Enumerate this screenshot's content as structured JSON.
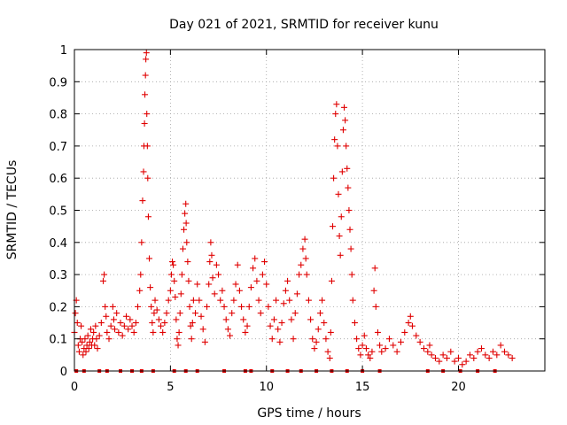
{
  "chart_data": {
    "type": "scatter",
    "title": "Day 021 of 2021, SRMTID for receiver kunu",
    "xlabel": "GPS time / hours",
    "ylabel": "SRMTID / TECUs",
    "xlim": [
      0,
      24.5
    ],
    "ylim": [
      0,
      1
    ],
    "x_ticks": [
      0,
      5,
      10,
      15,
      20
    ],
    "x_tick_labels": [
      "0",
      "5",
      "10",
      "15",
      "20"
    ],
    "y_ticks": [
      0,
      0.1,
      0.2,
      0.3,
      0.4,
      0.5,
      0.6,
      0.7,
      0.8,
      0.9,
      1
    ],
    "y_tick_labels": [
      "0",
      "0.1",
      "0.2",
      "0.3",
      "0.4",
      "0.5",
      "0.6",
      "0.7",
      "0.8",
      "0.9",
      "1"
    ],
    "grid": true,
    "marker": "+",
    "color": "#e00000",
    "series": [
      {
        "name": "SRMTID",
        "points": [
          [
            0.0,
            0.12
          ],
          [
            0.05,
            0.18
          ],
          [
            0.1,
            0.22
          ],
          [
            0.15,
            0.15
          ],
          [
            0.2,
            0.08
          ],
          [
            0.25,
            0.06
          ],
          [
            0.3,
            0.1
          ],
          [
            0.35,
            0.14
          ],
          [
            0.4,
            0.09
          ],
          [
            0.45,
            0.05
          ],
          [
            0.5,
            0.07
          ],
          [
            0.55,
            0.1
          ],
          [
            0.6,
            0.06
          ],
          [
            0.65,
            0.08
          ],
          [
            0.7,
            0.11
          ],
          [
            0.75,
            0.07
          ],
          [
            0.8,
            0.09
          ],
          [
            0.85,
            0.13
          ],
          [
            0.9,
            0.08
          ],
          [
            0.95,
            0.1
          ],
          [
            1.0,
            0.12
          ],
          [
            1.05,
            0.08
          ],
          [
            1.1,
            0.14
          ],
          [
            1.15,
            0.1
          ],
          [
            1.2,
            0.07
          ],
          [
            1.3,
            0.11
          ],
          [
            1.4,
            0.15
          ],
          [
            1.5,
            0.28
          ],
          [
            1.55,
            0.3
          ],
          [
            1.6,
            0.2
          ],
          [
            1.65,
            0.17
          ],
          [
            1.7,
            0.12
          ],
          [
            1.8,
            0.1
          ],
          [
            1.9,
            0.14
          ],
          [
            2.0,
            0.2
          ],
          [
            2.05,
            0.16
          ],
          [
            2.1,
            0.13
          ],
          [
            2.2,
            0.18
          ],
          [
            2.3,
            0.12
          ],
          [
            2.4,
            0.15
          ],
          [
            2.5,
            0.11
          ],
          [
            2.6,
            0.14
          ],
          [
            2.7,
            0.17
          ],
          [
            2.8,
            0.13
          ],
          [
            2.9,
            0.16
          ],
          [
            3.0,
            0.14
          ],
          [
            3.1,
            0.12
          ],
          [
            3.2,
            0.15
          ],
          [
            3.3,
            0.2
          ],
          [
            3.4,
            0.25
          ],
          [
            3.45,
            0.3
          ],
          [
            3.5,
            0.4
          ],
          [
            3.55,
            0.53
          ],
          [
            3.6,
            0.62
          ],
          [
            3.62,
            0.7
          ],
          [
            3.65,
            0.77
          ],
          [
            3.67,
            0.86
          ],
          [
            3.7,
            0.92
          ],
          [
            3.72,
            0.97
          ],
          [
            3.75,
            0.99
          ],
          [
            3.77,
            0.8
          ],
          [
            3.8,
            0.7
          ],
          [
            3.82,
            0.6
          ],
          [
            3.85,
            0.48
          ],
          [
            3.9,
            0.35
          ],
          [
            3.95,
            0.26
          ],
          [
            4.0,
            0.2
          ],
          [
            4.05,
            0.15
          ],
          [
            4.1,
            0.12
          ],
          [
            4.15,
            0.18
          ],
          [
            4.2,
            0.22
          ],
          [
            4.3,
            0.19
          ],
          [
            4.4,
            0.16
          ],
          [
            4.5,
            0.14
          ],
          [
            4.6,
            0.12
          ],
          [
            4.7,
            0.15
          ],
          [
            4.8,
            0.18
          ],
          [
            4.9,
            0.22
          ],
          [
            5.0,
            0.25
          ],
          [
            5.05,
            0.3
          ],
          [
            5.1,
            0.34
          ],
          [
            5.15,
            0.33
          ],
          [
            5.2,
            0.28
          ],
          [
            5.25,
            0.23
          ],
          [
            5.3,
            0.16
          ],
          [
            5.35,
            0.1
          ],
          [
            5.4,
            0.08
          ],
          [
            5.45,
            0.12
          ],
          [
            5.5,
            0.18
          ],
          [
            5.55,
            0.24
          ],
          [
            5.6,
            0.3
          ],
          [
            5.65,
            0.38
          ],
          [
            5.7,
            0.44
          ],
          [
            5.75,
            0.49
          ],
          [
            5.8,
            0.52
          ],
          [
            5.82,
            0.46
          ],
          [
            5.85,
            0.4
          ],
          [
            5.9,
            0.34
          ],
          [
            5.95,
            0.28
          ],
          [
            6.0,
            0.2
          ],
          [
            6.05,
            0.14
          ],
          [
            6.1,
            0.1
          ],
          [
            6.15,
            0.15
          ],
          [
            6.2,
            0.22
          ],
          [
            6.3,
            0.18
          ],
          [
            6.4,
            0.27
          ],
          [
            6.5,
            0.22
          ],
          [
            6.6,
            0.17
          ],
          [
            6.7,
            0.13
          ],
          [
            6.8,
            0.09
          ],
          [
            6.9,
            0.2
          ],
          [
            7.0,
            0.27
          ],
          [
            7.05,
            0.34
          ],
          [
            7.1,
            0.4
          ],
          [
            7.15,
            0.36
          ],
          [
            7.2,
            0.29
          ],
          [
            7.3,
            0.24
          ],
          [
            7.4,
            0.33
          ],
          [
            7.5,
            0.3
          ],
          [
            7.6,
            0.22
          ],
          [
            7.7,
            0.25
          ],
          [
            7.8,
            0.2
          ],
          [
            7.9,
            0.16
          ],
          [
            8.0,
            0.13
          ],
          [
            8.1,
            0.11
          ],
          [
            8.2,
            0.18
          ],
          [
            8.3,
            0.22
          ],
          [
            8.4,
            0.27
          ],
          [
            8.5,
            0.33
          ],
          [
            8.6,
            0.25
          ],
          [
            8.7,
            0.2
          ],
          [
            8.8,
            0.16
          ],
          [
            8.9,
            0.12
          ],
          [
            9.0,
            0.14
          ],
          [
            9.1,
            0.2
          ],
          [
            9.2,
            0.26
          ],
          [
            9.3,
            0.32
          ],
          [
            9.4,
            0.35
          ],
          [
            9.5,
            0.28
          ],
          [
            9.6,
            0.22
          ],
          [
            9.7,
            0.18
          ],
          [
            9.8,
            0.3
          ],
          [
            9.9,
            0.34
          ],
          [
            10.0,
            0.27
          ],
          [
            10.1,
            0.2
          ],
          [
            10.2,
            0.14
          ],
          [
            10.3,
            0.1
          ],
          [
            10.4,
            0.16
          ],
          [
            10.5,
            0.22
          ],
          [
            10.6,
            0.13
          ],
          [
            10.7,
            0.09
          ],
          [
            10.8,
            0.15
          ],
          [
            10.9,
            0.21
          ],
          [
            11.0,
            0.25
          ],
          [
            11.1,
            0.28
          ],
          [
            11.2,
            0.22
          ],
          [
            11.3,
            0.16
          ],
          [
            11.4,
            0.1
          ],
          [
            11.5,
            0.18
          ],
          [
            11.6,
            0.24
          ],
          [
            11.7,
            0.3
          ],
          [
            11.8,
            0.33
          ],
          [
            11.9,
            0.38
          ],
          [
            12.0,
            0.41
          ],
          [
            12.05,
            0.35
          ],
          [
            12.1,
            0.3
          ],
          [
            12.2,
            0.22
          ],
          [
            12.3,
            0.16
          ],
          [
            12.4,
            0.1
          ],
          [
            12.5,
            0.07
          ],
          [
            12.6,
            0.09
          ],
          [
            12.7,
            0.13
          ],
          [
            12.8,
            0.18
          ],
          [
            12.9,
            0.22
          ],
          [
            13.0,
            0.15
          ],
          [
            13.1,
            0.1
          ],
          [
            13.2,
            0.06
          ],
          [
            13.3,
            0.04
          ],
          [
            13.35,
            0.12
          ],
          [
            13.4,
            0.28
          ],
          [
            13.45,
            0.45
          ],
          [
            13.5,
            0.6
          ],
          [
            13.55,
            0.72
          ],
          [
            13.6,
            0.8
          ],
          [
            13.65,
            0.83
          ],
          [
            13.7,
            0.7
          ],
          [
            13.75,
            0.55
          ],
          [
            13.8,
            0.42
          ],
          [
            13.85,
            0.36
          ],
          [
            13.9,
            0.48
          ],
          [
            13.95,
            0.62
          ],
          [
            14.0,
            0.75
          ],
          [
            14.05,
            0.82
          ],
          [
            14.1,
            0.78
          ],
          [
            14.15,
            0.7
          ],
          [
            14.2,
            0.63
          ],
          [
            14.25,
            0.57
          ],
          [
            14.3,
            0.5
          ],
          [
            14.35,
            0.44
          ],
          [
            14.4,
            0.38
          ],
          [
            14.45,
            0.3
          ],
          [
            14.5,
            0.22
          ],
          [
            14.6,
            0.15
          ],
          [
            14.7,
            0.1
          ],
          [
            14.8,
            0.07
          ],
          [
            14.9,
            0.05
          ],
          [
            15.0,
            0.08
          ],
          [
            15.1,
            0.11
          ],
          [
            15.2,
            0.07
          ],
          [
            15.3,
            0.05
          ],
          [
            15.4,
            0.04
          ],
          [
            15.5,
            0.06
          ],
          [
            15.6,
            0.25
          ],
          [
            15.65,
            0.32
          ],
          [
            15.7,
            0.2
          ],
          [
            15.8,
            0.12
          ],
          [
            15.9,
            0.08
          ],
          [
            16.0,
            0.06
          ],
          [
            16.2,
            0.07
          ],
          [
            16.4,
            0.1
          ],
          [
            16.6,
            0.08
          ],
          [
            16.8,
            0.06
          ],
          [
            17.0,
            0.09
          ],
          [
            17.2,
            0.12
          ],
          [
            17.4,
            0.15
          ],
          [
            17.5,
            0.17
          ],
          [
            17.6,
            0.14
          ],
          [
            17.8,
            0.11
          ],
          [
            18.0,
            0.09
          ],
          [
            18.2,
            0.07
          ],
          [
            18.4,
            0.06
          ],
          [
            18.5,
            0.08
          ],
          [
            18.6,
            0.05
          ],
          [
            18.8,
            0.04
          ],
          [
            19.0,
            0.03
          ],
          [
            19.2,
            0.05
          ],
          [
            19.4,
            0.04
          ],
          [
            19.6,
            0.06
          ],
          [
            19.8,
            0.03
          ],
          [
            20.0,
            0.04
          ],
          [
            20.2,
            0.02
          ],
          [
            20.4,
            0.03
          ],
          [
            20.6,
            0.05
          ],
          [
            20.8,
            0.04
          ],
          [
            21.0,
            0.06
          ],
          [
            21.2,
            0.07
          ],
          [
            21.4,
            0.05
          ],
          [
            21.6,
            0.04
          ],
          [
            21.8,
            0.06
          ],
          [
            22.0,
            0.05
          ],
          [
            22.2,
            0.08
          ],
          [
            22.4,
            0.06
          ],
          [
            22.6,
            0.05
          ],
          [
            22.8,
            0.04
          ]
        ]
      }
    ],
    "gap_markers": [
      0.1,
      0.5,
      1.3,
      1.7,
      2.4,
      3.0,
      3.5,
      4.1,
      5.2,
      5.8,
      6.4,
      7.8,
      8.9,
      9.2,
      10.3,
      11.1,
      11.8,
      12.6,
      13.4,
      14.2,
      15.0,
      15.9,
      18.4,
      19.2,
      20.1,
      21.0,
      21.9
    ]
  }
}
